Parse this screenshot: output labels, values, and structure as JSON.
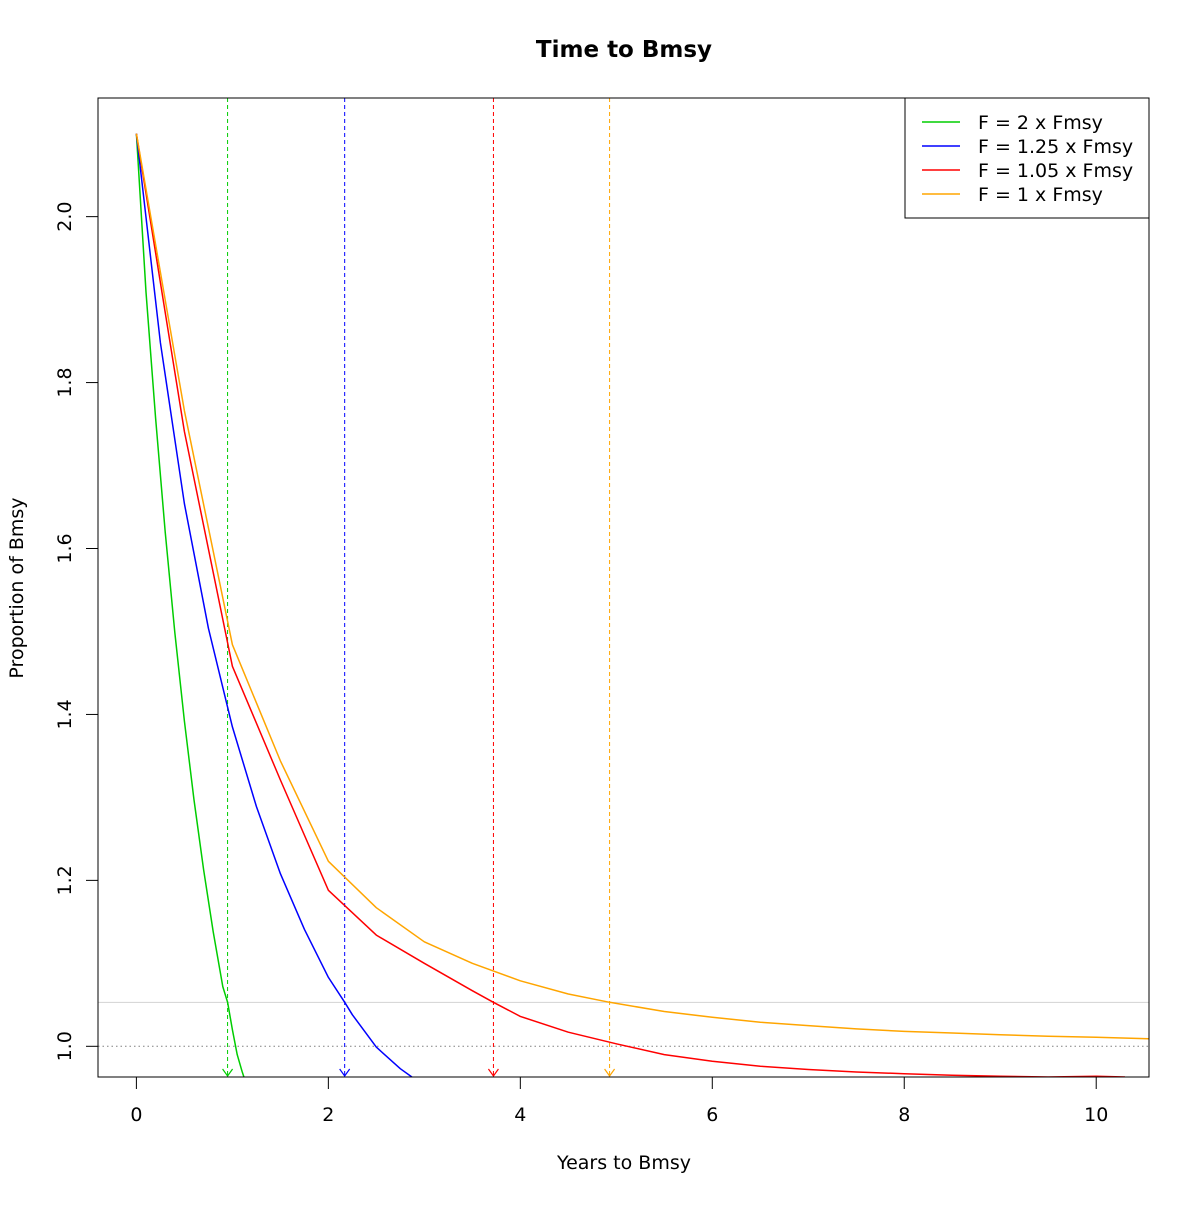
{
  "chart_data": {
    "type": "line",
    "title": "Time to Bmsy",
    "xlabel": "Years to Bmsy",
    "ylabel": "Proportion of Bmsy",
    "xlim": [
      -0.4,
      10.55
    ],
    "ylim": [
      0.963,
      2.143
    ],
    "x_ticks": [
      "0",
      "2",
      "4",
      "6",
      "8",
      "10"
    ],
    "y_ticks": [
      "1.0",
      "1.2",
      "1.4",
      "1.6",
      "1.8",
      "2.0"
    ],
    "grid": false,
    "legend_position": "top-right",
    "reference_lines": {
      "horizontal": [
        {
          "y": 1.0,
          "color": "#808080",
          "style": "dotted"
        },
        {
          "y": 1.053,
          "color": "#d3d3d3",
          "style": "solid"
        }
      ]
    },
    "series": [
      {
        "name": "F = 2 x Fmsy",
        "color": "#00cd00",
        "x": [
          0,
          0.1,
          0.2,
          0.3,
          0.4,
          0.5,
          0.6,
          0.7,
          0.8,
          0.9,
          0.95,
          1.0,
          1.05,
          1.1,
          1.12
        ],
        "y": [
          2.1,
          1.909,
          1.757,
          1.62,
          1.499,
          1.392,
          1.297,
          1.213,
          1.138,
          1.072,
          1.053,
          1.02,
          0.99,
          0.97,
          0.963
        ],
        "time_to_target": 0.95
      },
      {
        "name": "F = 1.25 x Fmsy",
        "color": "#0000ff",
        "x": [
          0,
          0.25,
          0.5,
          0.75,
          1.0,
          1.25,
          1.5,
          1.75,
          2.0,
          2.17,
          2.25,
          2.5,
          2.75,
          2.87
        ],
        "y": [
          2.1,
          1.848,
          1.654,
          1.504,
          1.385,
          1.289,
          1.208,
          1.141,
          1.083,
          1.053,
          1.038,
          0.999,
          0.973,
          0.963
        ],
        "time_to_target": 2.17
      },
      {
        "name": "F = 1.05 x Fmsy",
        "color": "#ff0000",
        "x": [
          0,
          0.5,
          1.0,
          1.5,
          2.0,
          2.5,
          3.0,
          3.5,
          3.72,
          4.0,
          4.5,
          5.0,
          5.5,
          6.0,
          6.5,
          7.0,
          7.5,
          8.0,
          8.5,
          9.0,
          9.5,
          10.0,
          10.3
        ],
        "y": [
          2.1,
          1.741,
          1.458,
          1.321,
          1.188,
          1.134,
          1.1,
          1.067,
          1.053,
          1.036,
          1.017,
          1.003,
          0.99,
          0.982,
          0.976,
          0.972,
          0.969,
          0.967,
          0.965,
          0.964,
          0.963,
          0.964,
          0.963
        ],
        "time_to_target": 3.72
      },
      {
        "name": "F = 1 x Fmsy",
        "color": "#ffa500",
        "x": [
          0,
          0.5,
          1.0,
          1.5,
          2.0,
          2.5,
          3.0,
          3.5,
          4.0,
          4.5,
          4.93,
          5.5,
          6.0,
          6.5,
          7.0,
          7.5,
          8.0,
          8.5,
          9.0,
          9.5,
          10.0,
          10.55
        ],
        "y": [
          2.1,
          1.766,
          1.484,
          1.344,
          1.223,
          1.167,
          1.126,
          1.1,
          1.079,
          1.063,
          1.053,
          1.042,
          1.035,
          1.029,
          1.025,
          1.021,
          1.018,
          1.016,
          1.014,
          1.012,
          1.011,
          1.009
        ],
        "time_to_target": 4.93
      }
    ]
  }
}
